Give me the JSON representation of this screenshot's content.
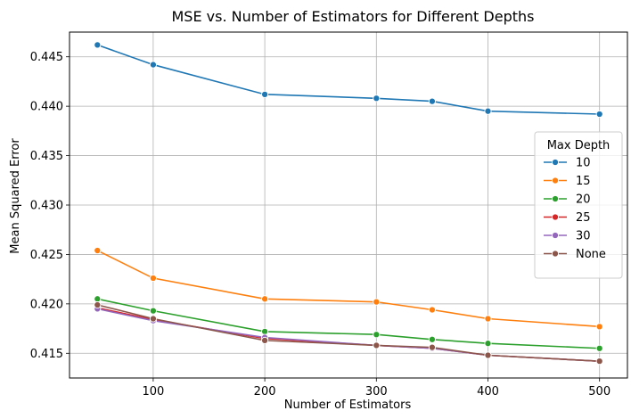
{
  "chart_data": {
    "type": "line",
    "title": "MSE vs. Number of Estimators for Different Depths",
    "xlabel": "Number of Estimators",
    "ylabel": "Mean Squared Error",
    "xlim": [
      25,
      525
    ],
    "ylim": [
      0.4125,
      0.4475
    ],
    "x_ticks": [
      100,
      200,
      300,
      400,
      500
    ],
    "x_tick_labels": [
      "100",
      "200",
      "300",
      "400",
      "500"
    ],
    "y_ticks": [
      0.415,
      0.42,
      0.425,
      0.43,
      0.435,
      0.44,
      0.445
    ],
    "y_tick_labels": [
      "0.415",
      "0.420",
      "0.425",
      "0.430",
      "0.435",
      "0.440",
      "0.445"
    ],
    "grid": true,
    "legend_title": "Max Depth",
    "legend_position": "center-right",
    "x": [
      50,
      100,
      200,
      300,
      350,
      400,
      500
    ],
    "series": [
      {
        "name": "10",
        "color": "#1f77b4",
        "values": [
          0.4462,
          0.4442,
          0.4412,
          0.4408,
          0.4405,
          0.4395,
          0.4392
        ]
      },
      {
        "name": "15",
        "color": "#ff7f0e",
        "values": [
          0.4254,
          0.4226,
          0.4205,
          0.4202,
          0.4194,
          0.4185,
          0.4177
        ]
      },
      {
        "name": "20",
        "color": "#2ca02c",
        "values": [
          0.4205,
          0.4193,
          0.4172,
          0.4169,
          0.4164,
          0.416,
          0.4155
        ]
      },
      {
        "name": "25",
        "color": "#d62728",
        "values": [
          0.4196,
          0.4184,
          0.4165,
          0.4158,
          0.4155,
          0.4148,
          0.4142
        ]
      },
      {
        "name": "30",
        "color": "#9467bd",
        "values": [
          0.4195,
          0.4183,
          0.4166,
          0.4158,
          0.4155,
          0.4148,
          0.4142
        ]
      },
      {
        "name": "None",
        "color": "#8c564b",
        "values": [
          0.4199,
          0.4185,
          0.4163,
          0.4158,
          0.4156,
          0.4148,
          0.4142
        ]
      }
    ]
  }
}
